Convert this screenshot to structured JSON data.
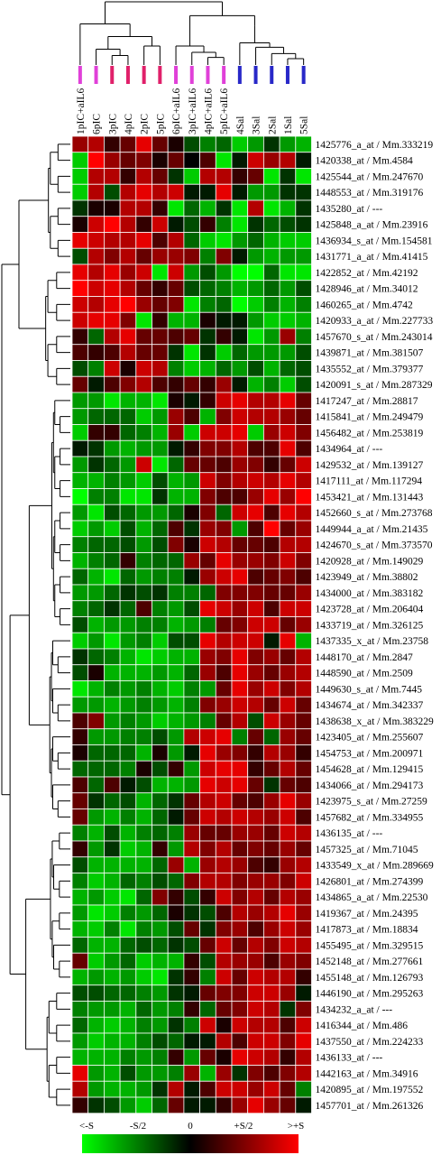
{
  "chart_data": {
    "type": "heatmap",
    "columns": [
      "1pIC+aIL6",
      "6pIC",
      "3pIC",
      "4pIC",
      "2pIC",
      "5pIC",
      "6pIC+aIL6",
      "3pIC+aIL6",
      "4pIC+aIL6",
      "5pIC+aIL6",
      "4Sal",
      "3Sal",
      "2Sal",
      "1Sal",
      "5Sal"
    ],
    "column_group_colors": [
      "#e040d8",
      "#e040d8",
      "#e0206a",
      "#e0206a",
      "#e0206a",
      "#e0206a",
      "#e040d8",
      "#e040d8",
      "#e040d8",
      "#e040d8",
      "#2828c8",
      "#2828c8",
      "#2828c8",
      "#2828c8",
      "#2828c8"
    ],
    "rows": [
      "1425776_a_at / Mm.333219",
      "1420338_at / Mm.4584",
      "1425544_at / Mm.247670",
      "1448553_at / Mm.319176",
      "1435280_at / ---",
      "1425848_a_at / Mm.23916",
      "1436934_s_at / Mm.154581",
      "1431771_a_at / Mm.41415",
      "1422852_at / Mm.42192",
      "1428946_at / Mm.34012",
      "1460265_at / Mm.4742",
      "1420933_a_at / Mm.227733",
      "1457670_s_at / Mm.243014",
      "1439871_at / Mm.381507",
      "1435552_at / Mm.379377",
      "1420091_s_at / Mm.287329",
      "1417247_at / Mm.28817",
      "1415841_at / Mm.249479",
      "1456482_at / Mm.253819",
      "1434964_at / ---",
      "1429532_at / Mm.139127",
      "1417111_at / Mm.117294",
      "1453421_at / Mm.131443",
      "1452660_s_at / Mm.273768",
      "1449944_a_at / Mm.21435",
      "1424670_s_at / Mm.373570",
      "1420928_at / Mm.149029",
      "1423949_at / Mm.38802",
      "1434000_at / Mm.383182",
      "1423728_at / Mm.206404",
      "1433719_at / Mm.326125",
      "1437335_x_at / Mm.23758",
      "1448170_at / Mm.2847",
      "1448590_at / Mm.2509",
      "1449630_s_at / Mm.7445",
      "1434674_at / Mm.342337",
      "1438638_x_at / Mm.383229",
      "1423405_at / Mm.255607",
      "1454753_at / Mm.200971",
      "1454628_at / Mm.129415",
      "1434066_at / Mm.294173",
      "1423975_s_at / Mm.27259",
      "1457682_at / Mm.334955",
      "1436135_at / ---",
      "1457325_at / Mm.71045",
      "1433549_x_at / Mm.289669",
      "1426801_at / Mm.274399",
      "1434865_a_at / Mm.22530",
      "1419367_at / Mm.24395",
      "1417873_at / Mm.18834",
      "1455495_at / Mm.329515",
      "1452148_at / Mm.277661",
      "1455148_at / Mm.126793",
      "1446190_at / Mm.295263",
      "1434232_a_at / ---",
      "1416344_at / Mm.486",
      "1437550_at / Mm.224233",
      "1436133_at / ---",
      "1442163_at / Mm.34916",
      "1420895_at / Mm.197552",
      "1457701_at / Mm.261326"
    ],
    "values": [
      [
        0.6,
        0.7,
        0.2,
        0.4,
        0.9,
        0.4,
        0.1,
        -0.3,
        -0.5,
        -0.4,
        -0.8,
        -0.6,
        -0.2,
        -0.6,
        -0.7
      ],
      [
        -0.8,
        1,
        0.6,
        0.4,
        0.5,
        0.1,
        0.4,
        0,
        0.3,
        -0.9,
        -0.1,
        0.8,
        0.6,
        0.7,
        -0.1
      ],
      [
        -0.8,
        0.7,
        0.7,
        0.2,
        0.7,
        0.4,
        -0.2,
        -0.8,
        0.7,
        0.7,
        0.2,
        0.4,
        -0.9,
        -0.2,
        -0.9
      ],
      [
        -0.8,
        0.7,
        -0.3,
        0.7,
        0.9,
        0.7,
        0.8,
        -0.1,
        -0.1,
        0.9,
        -0.1,
        -0.6,
        -0.6,
        -0.2,
        -0.2
      ],
      [
        -0.2,
        0.1,
        0.1,
        0.7,
        0.7,
        0.2,
        -0.9,
        -0.4,
        -0.7,
        -0.2,
        -0.9,
        0.7,
        -0.9,
        -0.7,
        -0.2
      ],
      [
        0.1,
        0.8,
        1,
        0.7,
        0.2,
        0.8,
        -0.1,
        -0.3,
        0.2,
        -0.5,
        -0.9,
        -0.2,
        -0.4,
        -0.3,
        -0.2
      ],
      [
        0.9,
        0.8,
        0.7,
        0.7,
        0.9,
        0.3,
        0.7,
        -0.4,
        -0.8,
        -0.9,
        -0.6,
        -0.4,
        -0.7,
        -0.8,
        -0.8
      ],
      [
        -0.3,
        0.7,
        0.5,
        0.7,
        0.4,
        0.6,
        0.6,
        0.5,
        -0.5,
        0.5,
        -0.1,
        -0.6,
        -0.7,
        -0.6,
        -0.6
      ],
      [
        0.9,
        0.7,
        0.9,
        0.6,
        0.8,
        -0.9,
        0.8,
        -0.6,
        -0.3,
        -0.6,
        -1,
        -1,
        -0.4,
        -0.9,
        -0.9
      ],
      [
        1,
        0.8,
        0.9,
        0.7,
        0.4,
        0.2,
        0.4,
        -0.3,
        -0.4,
        -0.5,
        -0.7,
        -0.6,
        -0.4,
        -0.6,
        -0.3
      ],
      [
        0.8,
        0.7,
        0.9,
        1,
        0.6,
        0.4,
        0.5,
        -0.9,
        -0.5,
        -0.4,
        -1,
        -0.8,
        -0.5,
        -0.7,
        -0.5
      ],
      [
        0.8,
        0.9,
        0.9,
        0.5,
        -0.9,
        0.2,
        -0.7,
        -0.7,
        0.1,
        -0.1,
        -0.1,
        -0.6,
        -0.8,
        -0.8,
        -0.7
      ],
      [
        0.2,
        -0.4,
        0.7,
        0.9,
        0.4,
        0.4,
        0.3,
        0.4,
        -0.2,
        0.2,
        -0.1,
        -0.9,
        -0.6,
        0.6,
        -0.5
      ],
      [
        0.3,
        0.2,
        0.3,
        0.7,
        0.4,
        0.4,
        -0.2,
        -0.9,
        -0.2,
        -0.8,
        -0.4,
        -0.6,
        -0.6,
        -0.6,
        -0.3
      ],
      [
        -0.3,
        -0.5,
        0.8,
        0.1,
        0.8,
        0.7,
        -0.5,
        -0.8,
        -0.7,
        -0.4,
        -0.6,
        -0.3,
        -0.7,
        -0.4,
        -0.3
      ],
      [
        0.4,
        -0.1,
        0.3,
        0.5,
        0.7,
        0.3,
        0.2,
        0.4,
        0.2,
        0.6,
        -0.1,
        -0.7,
        -0.5,
        -0.8,
        -0.3
      ],
      [
        -0.6,
        -0.6,
        -0.9,
        -0.7,
        -0.7,
        -0.9,
        0.1,
        -0.1,
        0.2,
        0.8,
        0.9,
        0.7,
        0.7,
        0.9,
        0.4
      ],
      [
        -0.6,
        -0.4,
        -0.4,
        -0.4,
        -0.8,
        -0.6,
        0.6,
        0.3,
        -0.7,
        0.5,
        0.8,
        0.7,
        0.7,
        0.6,
        0.4
      ],
      [
        -0.8,
        0.2,
        0.2,
        -0.4,
        -0.5,
        -0.7,
        0.6,
        -0.8,
        0.8,
        0.8,
        0.9,
        -0.8,
        0.6,
        0.8,
        0.5
      ],
      [
        -0.1,
        -0.2,
        -0.6,
        -0.7,
        -0.6,
        -0.6,
        -0.1,
        0.2,
        0.5,
        0.5,
        0.7,
        0.3,
        0.3,
        0.9,
        0.3
      ],
      [
        -0.6,
        -0.2,
        -0.4,
        -0.6,
        0.8,
        -0.9,
        -0.4,
        0.4,
        0.4,
        0.3,
        0.6,
        0.5,
        0.2,
        0.4,
        0.8
      ],
      [
        -0.7,
        -0.7,
        -0.5,
        -0.6,
        -0.8,
        -0.3,
        -0.7,
        -0.6,
        0.8,
        0.5,
        0.7,
        0.8,
        0.7,
        0.9,
        0.7
      ],
      [
        -1,
        -0.5,
        -0.5,
        -0.9,
        -0.9,
        -0.2,
        -0.7,
        -0.7,
        0.5,
        0.3,
        0.3,
        0.6,
        0.9,
        0.6,
        1
      ],
      [
        -0.6,
        -0.9,
        -0.3,
        -0.4,
        -0.6,
        -0.6,
        -0.4,
        0.1,
        0.5,
        -0.4,
        0.8,
        0.9,
        0.3,
        0.9,
        0.7
      ],
      [
        -0.8,
        -0.6,
        -0.8,
        -0.3,
        -0.7,
        -0.4,
        0.3,
        -0.2,
        0.6,
        0.5,
        -0.6,
        0.3,
        1,
        0.4,
        0.6
      ],
      [
        -0.5,
        -0.4,
        -0.4,
        -0.3,
        -0.6,
        -0.3,
        0.5,
        0.1,
        0.8,
        0.7,
        0.4,
        0.4,
        0.3,
        0.7,
        0.7
      ],
      [
        -0.7,
        -0.5,
        -0.4,
        0.2,
        -0.5,
        -0.4,
        -0.4,
        0.6,
        0.4,
        0.9,
        0.6,
        0.6,
        0.5,
        0.8,
        0.5
      ],
      [
        -0.4,
        -0.7,
        -0.9,
        -0.4,
        -0.6,
        -0.5,
        -0.5,
        -0.1,
        0.6,
        0.8,
        0.9,
        0.3,
        0.4,
        0.5,
        0.3
      ],
      [
        -0.6,
        -0.6,
        -0.4,
        -0.2,
        -0.3,
        -0.2,
        -0.5,
        -0.5,
        -0.4,
        0.5,
        0.5,
        0.5,
        0.4,
        0.4,
        0.6
      ],
      [
        -0.5,
        -0.4,
        -0.2,
        -0.4,
        0.3,
        -0.5,
        -0.6,
        -0.3,
        0.9,
        0.8,
        0.6,
        0.8,
        0.3,
        0.8,
        0.8
      ],
      [
        -0.3,
        -0.7,
        -0.6,
        -0.6,
        -0.5,
        -0.5,
        -0.7,
        -0.6,
        -0.5,
        0.4,
        0.5,
        0.8,
        0.8,
        0.4,
        0.6
      ],
      [
        -0.8,
        -0.6,
        -0.9,
        -0.6,
        -0.5,
        -0.8,
        -0.3,
        -0.3,
        0.9,
        0.7,
        0.8,
        0.8,
        -0.1,
        0.9,
        -0.7
      ],
      [
        -0.2,
        -0.4,
        -0.5,
        -0.7,
        -0.9,
        -0.8,
        -0.7,
        -0.7,
        0.6,
        0.5,
        0.9,
        0.5,
        0.6,
        0.4,
        0.7
      ],
      [
        -0.3,
        0.1,
        -0.7,
        -0.7,
        -0.7,
        -0.6,
        -0.7,
        -0.4,
        0.6,
        0.3,
        0.9,
        0.6,
        0.4,
        0.6,
        0.7
      ],
      [
        -0.9,
        -0.7,
        -0.5,
        -0.6,
        -0.5,
        -0.7,
        -0.8,
        -0.5,
        -0.6,
        0.4,
        0.9,
        0.6,
        0.8,
        0.5,
        0.7
      ],
      [
        -0.6,
        -0.6,
        -0.7,
        -0.6,
        -0.5,
        -0.6,
        -0.7,
        -0.5,
        0.5,
        0.6,
        0.8,
        0.7,
        0.4,
        0.8,
        0.4
      ],
      [
        0.3,
        0.5,
        -0.6,
        -0.5,
        -0.6,
        -0.8,
        -0.7,
        -0.6,
        -0.5,
        0.4,
        0.7,
        -0.3,
        0.8,
        0.6,
        0.4
      ],
      [
        0.2,
        -0.6,
        -0.6,
        -0.5,
        -0.5,
        -0.3,
        -0.6,
        0.7,
        0.8,
        0.9,
        -0.5,
        0.4,
        -0.4,
        0.6,
        0.4
      ],
      [
        0.1,
        -0.4,
        -0.4,
        -0.4,
        -0.7,
        0.1,
        -0.6,
        -0.1,
        0.9,
        0.6,
        0.5,
        0.2,
        0.7,
        0.6,
        0.2
      ],
      [
        -0.4,
        -0.4,
        -0.4,
        -0.5,
        0.1,
        -0.3,
        0.2,
        -0.6,
        0.8,
        0.9,
        0.9,
        0.2,
        0.4,
        0.7,
        0.4
      ],
      [
        0.3,
        -0.4,
        0.3,
        -0.1,
        -0.3,
        -0.7,
        -0.7,
        -0.6,
        0.9,
        0.8,
        0.9,
        0.4,
        -0.2,
        0.4,
        0.3
      ],
      [
        0.4,
        -0.2,
        -0.4,
        -0.3,
        -0.7,
        -0.4,
        -0.2,
        0.4,
        0.7,
        0.8,
        0.4,
        0.3,
        0.6,
        0.9,
        0.6
      ],
      [
        0.4,
        -0.6,
        -0.7,
        -0.5,
        -0.7,
        -0.4,
        -0.1,
        0.4,
        0.8,
        0.7,
        0.8,
        0.7,
        0.6,
        0.8,
        0.3
      ],
      [
        -0.5,
        -0.7,
        -0.3,
        -0.7,
        -0.5,
        -0.4,
        -0.5,
        0.6,
        0.4,
        0.4,
        0.6,
        0.6,
        0.4,
        0.8,
        0.7
      ],
      [
        0.2,
        -0.6,
        -0.2,
        -0.8,
        -0.7,
        0.2,
        -0.6,
        0.7,
        0.5,
        0.7,
        0.4,
        0.5,
        0.4,
        0.6,
        0.4
      ],
      [
        -0.3,
        -0.7,
        -0.7,
        -0.7,
        -0.7,
        -0.4,
        0.6,
        -0.7,
        0.6,
        0.7,
        0.6,
        0.3,
        0.2,
        0.6,
        0.7
      ],
      [
        -0.5,
        -0.8,
        -0.7,
        -0.4,
        -0.5,
        -0.3,
        -0.4,
        0.5,
        0.7,
        0.7,
        0.5,
        0.6,
        0.6,
        0.5,
        0.8
      ],
      [
        -0.7,
        -0.6,
        -0.8,
        -0.9,
        -0.4,
        0.5,
        0.2,
        -0.3,
        0.2,
        0.8,
        0.5,
        0.7,
        0.4,
        0.7,
        0.6
      ],
      [
        -0.6,
        -0.9,
        -0.8,
        -0.5,
        -0.6,
        -0.4,
        0.1,
        -0.2,
        -0.3,
        0.3,
        0.7,
        0.6,
        0.7,
        0.9,
        0.6
      ],
      [
        -0.7,
        -0.8,
        -0.5,
        -0.9,
        -0.5,
        -0.6,
        -0.3,
        0.4,
        -0.2,
        0.5,
        0.6,
        0.3,
        0.6,
        0.8,
        0.6
      ],
      [
        -0.4,
        -0.7,
        -0.7,
        -0.4,
        -0.3,
        -0.4,
        -0.2,
        -0.3,
        0.4,
        0.8,
        0.4,
        0.7,
        0.5,
        0.8,
        0.7
      ],
      [
        0.4,
        -0.8,
        -0.6,
        -0.4,
        -0.8,
        -0.7,
        -0.7,
        0.2,
        -0.3,
        0.7,
        0.6,
        0.6,
        0.3,
        0.6,
        0.5
      ],
      [
        -0.7,
        -0.6,
        -0.7,
        -0.6,
        -0.8,
        -0.9,
        -0.2,
        0.2,
        -0.5,
        0.8,
        0.4,
        0.8,
        0.7,
        0.7,
        0.2
      ],
      [
        -0.3,
        -0.3,
        -0.4,
        -0.4,
        -0.5,
        -0.6,
        -0.2,
        -0.1,
        0.4,
        0.5,
        0.5,
        0.8,
        0.8,
        0.6,
        -0.1
      ],
      [
        -0.5,
        -0.6,
        -0.6,
        -0.7,
        -0.4,
        -0.6,
        -0.5,
        0.2,
        -0.4,
        0.4,
        0.5,
        0.8,
        0.7,
        -0.2,
        0.5
      ],
      [
        -0.4,
        -0.7,
        -0.8,
        -0.7,
        -0.5,
        -0.6,
        -0.2,
        -0.5,
        0.8,
        0.1,
        0.8,
        0.7,
        0.7,
        0.3,
        0.8
      ],
      [
        -0.6,
        -0.8,
        -0.7,
        -0.7,
        -0.5,
        -0.3,
        -0.4,
        -0.1,
        -0.1,
        0.7,
        0.3,
        0.8,
        0.8,
        0.5,
        0.9
      ],
      [
        -0.7,
        -0.7,
        -0.7,
        -0.5,
        -0.6,
        -0.5,
        0.2,
        -0.6,
        0.4,
        0.1,
        0.9,
        0.8,
        0.7,
        0.2,
        0.7
      ],
      [
        0.9,
        -0.6,
        -0.7,
        -0.3,
        -0.6,
        -0.6,
        -0.5,
        0.6,
        -0.7,
        0.6,
        -0.2,
        0.5,
        0.3,
        0.5,
        0.7
      ],
      [
        0.7,
        -0.6,
        -0.7,
        -0.7,
        -0.6,
        -0.2,
        0.7,
        -0.1,
        0.3,
        0.8,
        0.8,
        0.6,
        0.8,
        0.4,
        -0.5
      ],
      [
        0.2,
        -0.2,
        -0.3,
        -0.6,
        -0.8,
        -0.4,
        0.4,
        -0.1,
        -0.1,
        0.2,
        0.6,
        0.9,
        0.6,
        0.4,
        -0.1
      ]
    ],
    "colorbar": {
      "labels": [
        "<-S",
        "-S/2",
        "0",
        "+S/2",
        ">+S"
      ],
      "low_color": "#00ff00",
      "mid_color": "#000000",
      "high_color": "#ff0000"
    },
    "dendrogram_color": "#000000",
    "grid": "white cell borders"
  }
}
